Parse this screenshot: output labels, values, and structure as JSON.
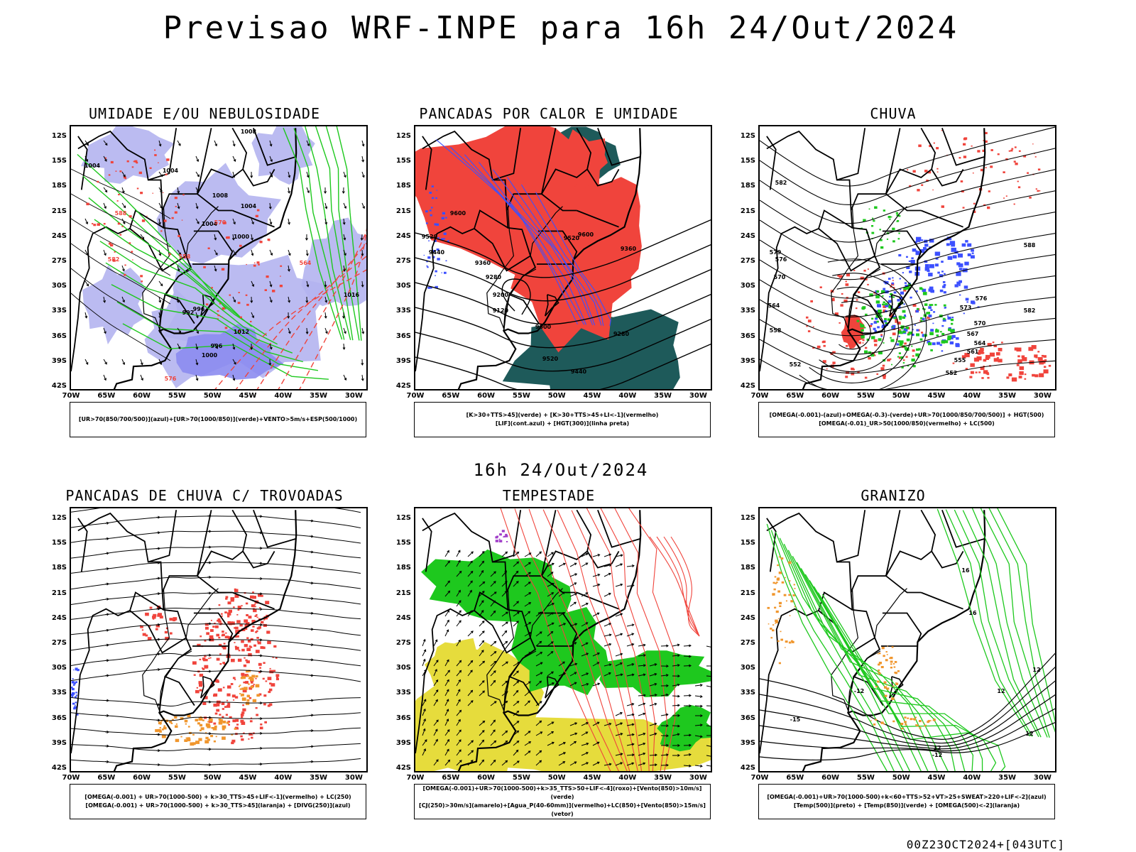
{
  "header": {
    "title": "Previsao WRF-INPE  para 16h 24/Out/2024"
  },
  "middle": {
    "title": "16h 24/Out/2024"
  },
  "footer": {
    "stamp": "00Z23OCT2024+[043UTC]"
  },
  "colors": {
    "red": "#f0443c",
    "green": "#1ec81e",
    "blue": "#3c50ff",
    "lavender": "#b4b4f0",
    "teal": "#1e5a5a",
    "yellow": "#e6dc3c",
    "orange": "#f0962d",
    "purple": "#a03cc8",
    "black": "#000000"
  },
  "axes": {
    "lat_labels": [
      "12S",
      "15S",
      "18S",
      "21S",
      "24S",
      "27S",
      "30S",
      "33S",
      "36S",
      "39S",
      "42S"
    ],
    "lon_labels": [
      "70W",
      "65W",
      "60W",
      "55W",
      "50W",
      "45W",
      "40W",
      "35W",
      "30W"
    ]
  },
  "panels": [
    {
      "title": "UMIDADE E/OU NEBULOSIDADE",
      "legend": [
        "[UR>70(850/700/500)](azul)+[UR>70(1000/850)](verde)+VENTO>5m/s+ESP(500/1000)"
      ],
      "contour_labels": [
        "1008",
        "1004",
        "1004",
        "1008",
        "1004",
        "1004",
        "1000",
        "996",
        "992",
        "996",
        "1000",
        "1012",
        "1016",
        "576",
        "570",
        "564",
        "558",
        "588",
        "582"
      ]
    },
    {
      "title": "PANCADAS POR CALOR E UMIDADE",
      "legend": [
        "[K>30+TTS>45](verde) + [K>30+TTS>45+LI<-1](vermelho)",
        "[LIF](cont.azul) + [HGT(300)](linha preta)"
      ],
      "contour_labels": [
        "9600",
        "9520",
        "9440",
        "9360",
        "9280",
        "9200",
        "9120",
        "9600",
        "9520",
        "9440",
        "9360",
        "9280",
        "9600",
        "9520"
      ]
    },
    {
      "title": "CHUVA",
      "legend": [
        "[OMEGA(-0.001)-(azul)+OMEGA(-0.3)-(verde)+UR>70(1000/850/700/500)] + HGT(500)",
        "[OMEGA(-0.01)_UR>50(1000/850)(vermelho) + LC(500)"
      ],
      "contour_labels": [
        "582",
        "576",
        "570",
        "564",
        "558",
        "552",
        "588",
        "582",
        "576",
        "573",
        "570",
        "567",
        "564",
        "561",
        "555",
        "552",
        "579"
      ]
    },
    {
      "title": "PANCADAS DE CHUVA C/ TROVOADAS",
      "legend": [
        "[OMEGA(-0.001) + UR>70(1000-500) + k>30_TTS>45+LIF<-1](vermelho) + LC(250)",
        "[OMEGA(-0.001) + UR>70(1000-500) + k>30_TTS>45](laranja) + [DIVG(250)](azul)"
      ],
      "contour_labels": []
    },
    {
      "title": "TEMPESTADE",
      "legend": [
        "[OMEGA(-0.001)+UR>70(1000-500)+k>35_TTS>50+LIF<-4](roxo)+[Vento(850)>10m/s](verde)",
        "[CJ(250)>30m/s](amarelo)+[Agua_P(40-60mm)](vermelho)+LC(850)+[Vento(850)>15m/s](vetor)"
      ],
      "contour_labels": []
    },
    {
      "title": "GRANIZO",
      "legend": [
        "[OMEGA(-0.001)+UR>70(1000-500)+k<60+TTS>52+VT>25+SWEAT>220+LIF<-2](azul)",
        "[Temp(500)](preto) + [Temp(850)](verde) + [OMEGA(500)<-2](laranja)"
      ],
      "contour_labels": [
        "-12",
        "-15",
        "12",
        "16",
        "12",
        "12",
        "-12",
        "16",
        "12"
      ]
    }
  ]
}
